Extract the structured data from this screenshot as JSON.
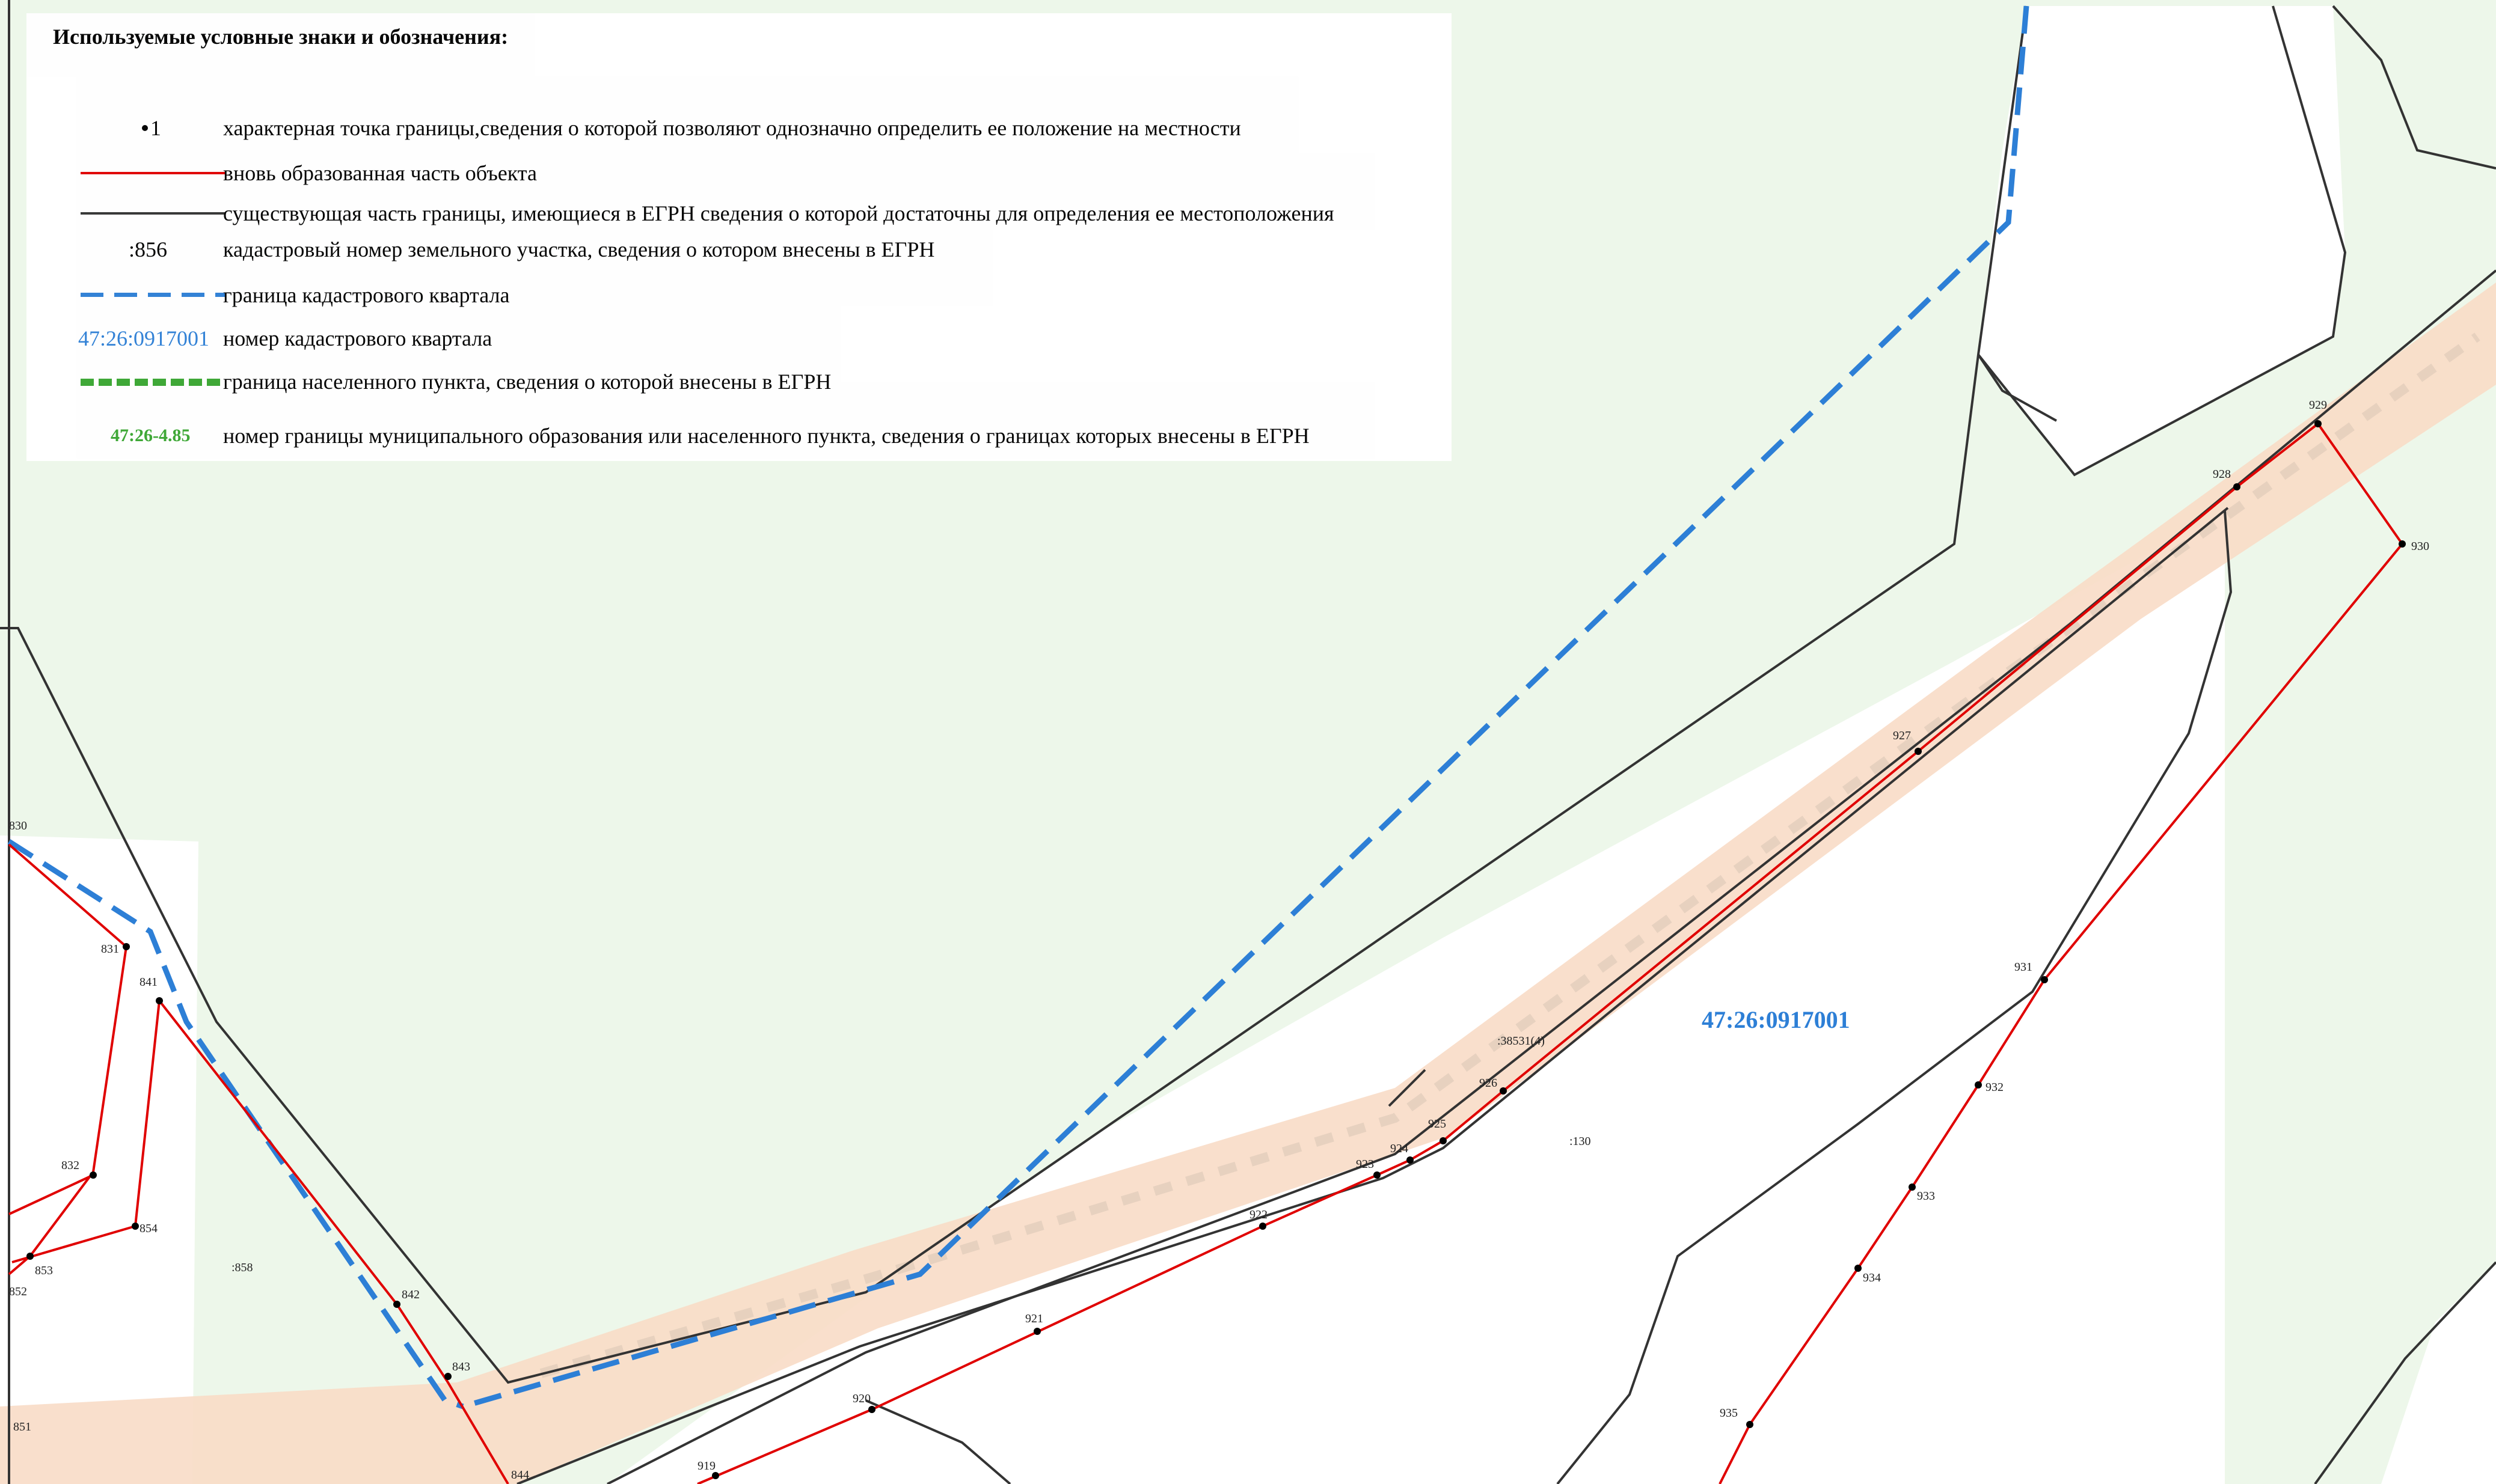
{
  "legend": {
    "title": "Используемые условные знаки и обозначения:",
    "items": [
      {
        "symbol": "point",
        "symbol_text": "1",
        "text": "характерная точка границы,сведения о которой позволяют однозначно определить ее положение на местности"
      },
      {
        "symbol": "red-line",
        "text": "вновь образованная часть объекта"
      },
      {
        "symbol": "black-line",
        "text": "существующая часть границы, имеющиеся в ЕГРН сведения о которой достаточны для определения ее местоположения"
      },
      {
        "symbol": "text",
        "symbol_text": ":856",
        "text": "кадастровый номер земельного участка, сведения о котором внесены в ЕГРН"
      },
      {
        "symbol": "blue-dash",
        "text": "граница кадастрового квартала"
      },
      {
        "symbol": "blue-text",
        "symbol_text": "47:26:0917001",
        "text": "номер кадастрового квартала"
      },
      {
        "symbol": "green-dash",
        "text": "граница населенного пункта, сведения о которой внесены в ЕГРН"
      },
      {
        "symbol": "green-text",
        "symbol_text": "47:26-4.85",
        "text": "номер границы муниципального образования или населенного пункта, сведения о границах которых внесены в ЕГРН"
      }
    ]
  },
  "colors": {
    "red_line": "#e00000",
    "black_line": "#333333",
    "blue_boundary": "#2d7fd6",
    "green_boundary": "#3aa632",
    "green_area": "#edf7ea",
    "road_fill": "#f8dcc6"
  },
  "map": {
    "quarter_number": "47:26:0917001",
    "parcel_labels": [
      ":130",
      ":858",
      ":38531(4)"
    ],
    "points": [
      "830",
      "831",
      "832",
      "841",
      "842",
      "843",
      "844",
      "851",
      "852",
      "853",
      "854",
      "919",
      "920",
      "921",
      "922",
      "923",
      "924",
      "925",
      "926",
      "927",
      "928",
      "929",
      "930",
      "931",
      "932",
      "933",
      "934",
      "935"
    ]
  }
}
